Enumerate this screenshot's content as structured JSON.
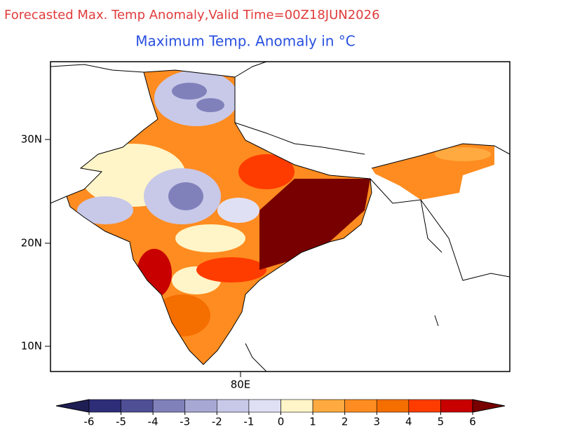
{
  "title": "Forecasted Max. Temp Anomaly,Valid Time=00Z18JUN2026",
  "subtitle": "Maximum Temp. Anomaly in °C",
  "map": {
    "lat_labels": [
      "30N",
      "20N",
      "10N"
    ],
    "lon_labels": [
      "80E"
    ]
  },
  "colorbar": {
    "levels": [
      -6,
      -5,
      -4,
      -3,
      -2,
      -1,
      0,
      1,
      2,
      3,
      4,
      5,
      6
    ],
    "colors": [
      "#1e1e55",
      "#2d2d78",
      "#4f4f96",
      "#8080bb",
      "#a8a8d4",
      "#c8c8e8",
      "#e0e0f5",
      "#fff5c8",
      "#ffaa40",
      "#ff8c20",
      "#f56e00",
      "#ff3c00",
      "#c80000",
      "#780000"
    ]
  }
}
